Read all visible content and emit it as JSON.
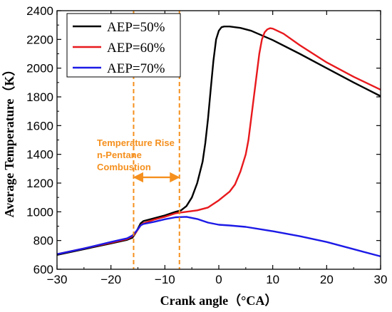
{
  "chart_data": {
    "type": "line",
    "xlabel": "Crank angle（°CA）",
    "ylabel": "Average Temperature（K）",
    "xlim": [
      -30,
      30
    ],
    "ylim": [
      600,
      2400
    ],
    "xticks": [
      -30,
      -20,
      -10,
      0,
      10,
      20,
      30
    ],
    "yticks": [
      600,
      800,
      1000,
      1200,
      1400,
      1600,
      1800,
      2000,
      2200,
      2400
    ],
    "legend_position": "top-left",
    "series": [
      {
        "name": "AEP=50%",
        "color": "#000000",
        "x": [
          -30,
          -25,
          -20,
          -17,
          -16,
          -15.3,
          -14.5,
          -14,
          -12,
          -10,
          -8,
          -7,
          -6,
          -5,
          -4,
          -3,
          -2.5,
          -2,
          -1.5,
          -1,
          -0.5,
          0,
          0.5,
          1,
          2,
          4,
          6,
          10,
          15,
          20,
          25,
          30
        ],
        "y": [
          700,
          740,
          780,
          805,
          820,
          860,
          920,
          935,
          955,
          975,
          1000,
          1010,
          1040,
          1100,
          1200,
          1350,
          1480,
          1650,
          1850,
          2050,
          2200,
          2260,
          2285,
          2290,
          2290,
          2280,
          2260,
          2195,
          2100,
          2000,
          1900,
          1805
        ]
      },
      {
        "name": "AEP=60%",
        "color": "#e8191d",
        "x": [
          -30,
          -25,
          -20,
          -17,
          -16,
          -15.3,
          -14.5,
          -14,
          -12,
          -10,
          -8,
          -7,
          -6,
          -4,
          -2,
          0,
          1,
          2,
          3,
          4,
          5,
          5.5,
          6,
          6.5,
          7,
          7.5,
          8,
          8.5,
          9,
          9.5,
          10,
          12,
          15,
          20,
          25,
          30
        ],
        "y": [
          705,
          745,
          785,
          810,
          830,
          860,
          905,
          920,
          945,
          965,
          990,
          995,
          1000,
          1010,
          1030,
          1080,
          1110,
          1140,
          1190,
          1280,
          1400,
          1500,
          1650,
          1800,
          1950,
          2100,
          2200,
          2250,
          2270,
          2278,
          2275,
          2240,
          2160,
          2040,
          1940,
          1850
        ]
      },
      {
        "name": "AEP=70%",
        "color": "#1c1ae6",
        "x": [
          -30,
          -25,
          -20,
          -17,
          -16,
          -15.3,
          -14.5,
          -14,
          -12,
          -10,
          -8,
          -6,
          -4,
          -2,
          0,
          2,
          5,
          10,
          15,
          20,
          25,
          30
        ],
        "y": [
          705,
          745,
          790,
          815,
          835,
          865,
          905,
          915,
          930,
          948,
          962,
          965,
          950,
          925,
          910,
          905,
          895,
          865,
          830,
          790,
          740,
          690
        ]
      }
    ],
    "annotation": {
      "lines": [
        "Temperature Rise",
        "n-Pentane",
        "Combustion"
      ],
      "color": "#f5901e",
      "x_start": -15.8,
      "x_end": -7.3,
      "arrow_y": 1240
    }
  }
}
